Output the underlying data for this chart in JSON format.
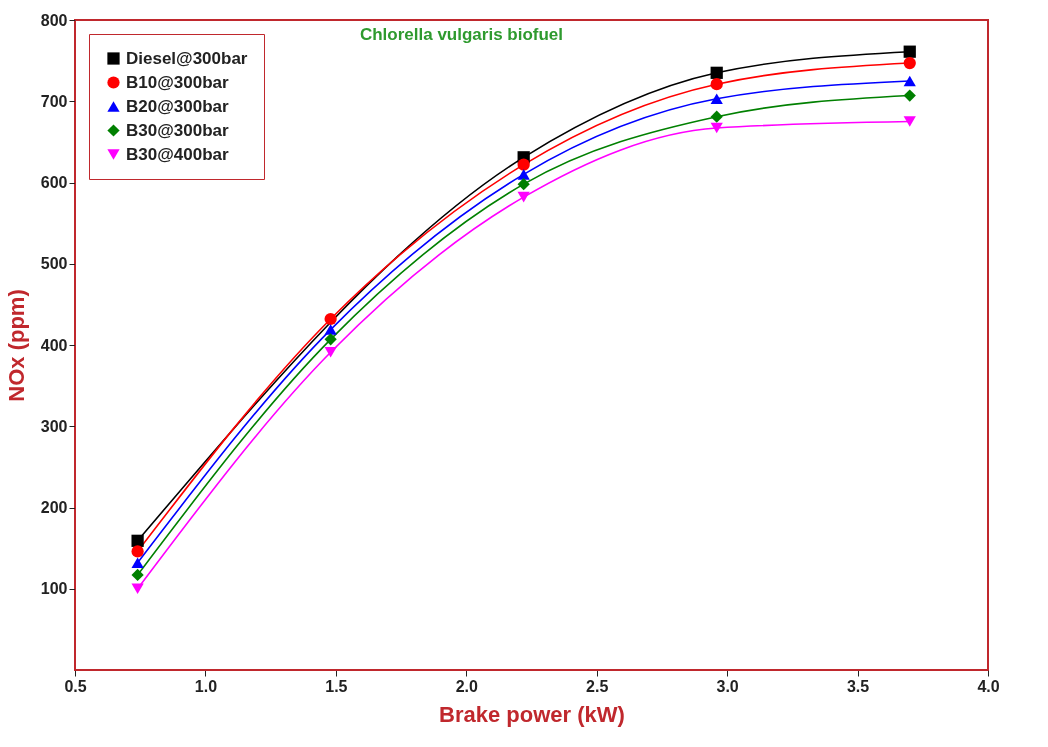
{
  "chart_data": {
    "type": "line",
    "title": "Chlorella vulgaris biofuel",
    "xlabel": "Brake power (kW)",
    "ylabel": "NOx (ppm)",
    "x": [
      0.74,
      1.48,
      2.22,
      2.96,
      3.7
    ],
    "series": [
      {
        "name": "Diesel@300bar",
        "color": "#000000",
        "marker": "square",
        "values": [
          159,
          null,
          631,
          735,
          761
        ]
      },
      {
        "name": "B10@300bar",
        "color": "#ff0000",
        "marker": "circle",
        "values": [
          146,
          432,
          622,
          721,
          747
        ]
      },
      {
        "name": "B20@300bar",
        "color": "#0000ff",
        "marker": "triangle",
        "values": [
          132,
          419,
          610,
          703,
          725
        ]
      },
      {
        "name": "B30@300bar",
        "color": "#008000",
        "marker": "diamond",
        "values": [
          117,
          407,
          598,
          681,
          707
        ]
      },
      {
        "name": "B30@400bar",
        "color": "#ff00ff",
        "marker": "triangle-down",
        "values": [
          100,
          391,
          582,
          667,
          675
        ]
      }
    ],
    "xlim": [
      0.5,
      4.0
    ],
    "xticks": [
      {
        "value": 0.5,
        "label": "0.5"
      },
      {
        "value": 1,
        "label": "1.0"
      },
      {
        "value": 1.5,
        "label": "1.5"
      },
      {
        "value": 2,
        "label": "2.0"
      },
      {
        "value": 2.5,
        "label": "2.5"
      },
      {
        "value": 3,
        "label": "3.0"
      },
      {
        "value": 3.5,
        "label": "3.5"
      },
      {
        "value": 4,
        "label": "4.0"
      }
    ],
    "ylim": [
      0,
      800
    ],
    "yticks": [
      100,
      200,
      300,
      400,
      500,
      600,
      700,
      800
    ],
    "grid": false,
    "legend": "top left",
    "line_style": "solid"
  }
}
